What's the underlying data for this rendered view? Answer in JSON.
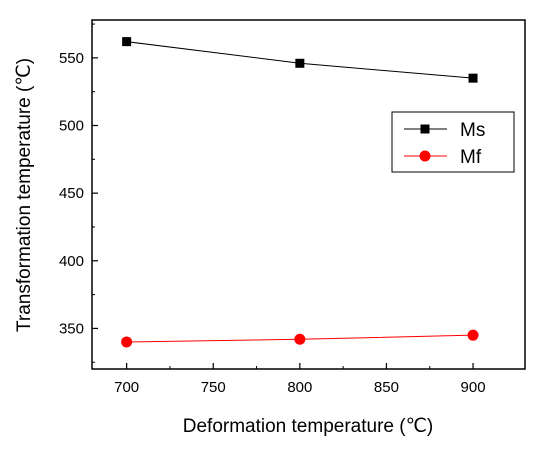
{
  "chart_data": {
    "type": "line",
    "xlabel": "Deformation temperature (℃)",
    "ylabel": "Transformation temperature (℃)",
    "xlim": [
      680,
      930
    ],
    "ylim": [
      320,
      578
    ],
    "x_ticks": [
      700,
      750,
      800,
      850,
      900
    ],
    "y_ticks": [
      350,
      400,
      450,
      500,
      550
    ],
    "x_tick_labels": [
      "700",
      "750",
      "800",
      "850",
      "900"
    ],
    "y_tick_labels": [
      "350",
      "400",
      "450",
      "500",
      "550"
    ],
    "legend_position": "right-middle",
    "grid": false,
    "series": [
      {
        "name": "Ms",
        "marker": "square",
        "color": "#000000",
        "x": [
          700,
          800,
          900
        ],
        "y": [
          562,
          546,
          535
        ]
      },
      {
        "name": "Mf",
        "marker": "circle",
        "color": "#ff0000",
        "x": [
          700,
          800,
          900
        ],
        "y": [
          340,
          342,
          345
        ]
      }
    ]
  }
}
